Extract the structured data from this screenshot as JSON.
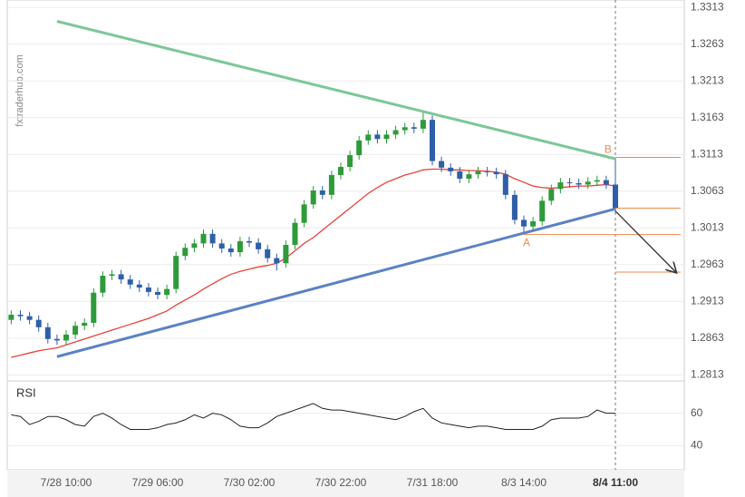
{
  "chart_data": {
    "type": "candlestick",
    "watermark": "fxtraderhub.com",
    "indicator_label": "RSI",
    "categories": [
      null,
      null,
      null,
      null,
      null,
      null,
      "7/28 10:00",
      null,
      null,
      null,
      null,
      null,
      null,
      null,
      null,
      null,
      "7/29 06:00",
      null,
      null,
      null,
      null,
      null,
      null,
      null,
      null,
      null,
      "7/30 02:00",
      null,
      null,
      null,
      null,
      null,
      null,
      null,
      null,
      null,
      "7/30 22:00",
      null,
      null,
      null,
      null,
      null,
      null,
      null,
      null,
      null,
      "7/31 18:00",
      null,
      null,
      null,
      null,
      null,
      null,
      null,
      null,
      null,
      "8/3 14:00",
      null,
      null,
      null,
      null,
      null,
      null,
      null,
      null,
      null,
      "8/4 11:00"
    ],
    "open": [
      1.2888,
      1.2895,
      1.2893,
      1.2888,
      1.2878,
      1.2862,
      1.286,
      1.2868,
      1.288,
      1.2884,
      1.2925,
      1.2948,
      1.295,
      1.2943,
      1.2936,
      1.2932,
      1.2926,
      1.2922,
      1.293,
      1.2975,
      1.2986,
      1.2992,
      1.3005,
      1.2992,
      1.2985,
      1.298,
      1.2995,
      1.2993,
      1.2984,
      1.2972,
      1.2965,
      1.299,
      1.302,
      1.3045,
      1.3064,
      1.3058,
      1.3085,
      1.3096,
      1.3112,
      1.3132,
      1.314,
      1.3134,
      1.314,
      1.3146,
      1.315,
      1.3148,
      1.316,
      1.3104,
      1.3095,
      1.309,
      1.308,
      1.3086,
      1.309,
      1.3089,
      1.3086,
      1.3058,
      1.3024,
      1.3015,
      1.3022,
      1.305,
      1.3066,
      1.3075,
      1.3074,
      1.3072,
      1.3076,
      1.3078,
      1.3072
    ],
    "high": [
      1.2901,
      1.2901,
      1.2899,
      1.2894,
      1.2884,
      1.2868,
      1.2874,
      1.2886,
      1.289,
      1.2931,
      1.2954,
      1.2956,
      1.2956,
      1.2949,
      1.2942,
      1.2938,
      1.2932,
      1.2936,
      1.2981,
      1.2992,
      1.2998,
      1.3011,
      1.3011,
      1.2998,
      1.2991,
      1.3001,
      1.3001,
      1.2999,
      1.299,
      1.2978,
      1.2996,
      1.3026,
      1.3051,
      1.307,
      1.307,
      1.3091,
      1.3102,
      1.3118,
      1.3138,
      1.3146,
      1.3146,
      1.3146,
      1.3152,
      1.3156,
      1.3156,
      1.317,
      1.3166,
      1.311,
      1.3101,
      1.3096,
      1.3092,
      1.3096,
      1.3096,
      1.3095,
      1.3092,
      1.3064,
      1.303,
      1.3028,
      1.3056,
      1.3072,
      1.3081,
      1.3081,
      1.308,
      1.3082,
      1.3084,
      1.3084,
      1.3108
    ],
    "low": [
      1.2882,
      1.2887,
      1.2882,
      1.2872,
      1.2856,
      1.2854,
      1.2854,
      1.2862,
      1.2874,
      1.2878,
      1.2919,
      1.2942,
      1.2937,
      1.293,
      1.2926,
      1.292,
      1.2916,
      1.2916,
      1.2924,
      1.2969,
      1.298,
      1.2986,
      1.2986,
      1.2979,
      1.2974,
      1.2974,
      1.2987,
      1.2978,
      1.2966,
      1.2955,
      1.2959,
      1.2984,
      1.3014,
      1.3039,
      1.3052,
      1.3052,
      1.3079,
      1.309,
      1.3106,
      1.3126,
      1.3128,
      1.3128,
      1.3134,
      1.314,
      1.3142,
      1.3142,
      1.3098,
      1.3089,
      1.3084,
      1.3074,
      1.3074,
      1.308,
      1.3083,
      1.308,
      1.3052,
      1.3018,
      1.3004,
      1.3009,
      1.3016,
      1.3044,
      1.306,
      1.3068,
      1.3066,
      1.3066,
      1.307,
      1.3066,
      1.3034
    ],
    "close": [
      1.2895,
      1.2893,
      1.2888,
      1.2878,
      1.2862,
      1.286,
      1.2868,
      1.288,
      1.2884,
      1.2925,
      1.2948,
      1.295,
      1.2943,
      1.2936,
      1.2932,
      1.2926,
      1.2922,
      1.293,
      1.2975,
      1.2986,
      1.2992,
      1.3005,
      1.2992,
      1.2985,
      1.298,
      1.2995,
      1.2993,
      1.2984,
      1.2972,
      1.2965,
      1.299,
      1.302,
      1.3045,
      1.3064,
      1.3058,
      1.3085,
      1.3096,
      1.3112,
      1.3132,
      1.314,
      1.3134,
      1.314,
      1.3146,
      1.315,
      1.3148,
      1.316,
      1.3104,
      1.3095,
      1.309,
      1.308,
      1.3086,
      1.309,
      1.3089,
      1.3086,
      1.3058,
      1.3024,
      1.3015,
      1.3022,
      1.305,
      1.3066,
      1.3075,
      1.3074,
      1.3072,
      1.3076,
      1.3078,
      1.3072,
      1.304
    ],
    "up_color": "#2e9a3a",
    "down_color": "#2f5fa8",
    "moving_average": {
      "color": "#e8413a",
      "values": [
        1.2837,
        1.284,
        1.2843,
        1.2846,
        1.2848,
        1.285,
        1.2854,
        1.2858,
        1.2862,
        1.2866,
        1.287,
        1.2874,
        1.2878,
        1.2882,
        1.2886,
        1.289,
        1.2895,
        1.29,
        1.2908,
        1.2915,
        1.2922,
        1.293,
        1.2937,
        1.2944,
        1.295,
        1.2954,
        1.2957,
        1.296,
        1.2962,
        1.2965,
        1.2972,
        1.2982,
        1.2992,
        1.3,
        1.301,
        1.302,
        1.303,
        1.304,
        1.305,
        1.306,
        1.3068,
        1.3075,
        1.308,
        1.3085,
        1.3088,
        1.3092,
        1.3093,
        1.3093,
        1.3092,
        1.3092,
        1.3091,
        1.3091,
        1.309,
        1.3089,
        1.3086,
        1.308,
        1.3075,
        1.307,
        1.3068,
        1.3067,
        1.3068,
        1.3069,
        1.307,
        1.307,
        1.3071,
        1.3072,
        1.307
      ]
    },
    "rsi": {
      "color": "#222222",
      "values": [
        59,
        58,
        53,
        55,
        58,
        58,
        56,
        53,
        52,
        58,
        60,
        57,
        53,
        50,
        50,
        50,
        51,
        53,
        54,
        56,
        59,
        57,
        60,
        59,
        56,
        52,
        51,
        51,
        54,
        58,
        60,
        62,
        64,
        66,
        63,
        62,
        62,
        61,
        60,
        59,
        58,
        57,
        56,
        58,
        61,
        63,
        57,
        54,
        53,
        52,
        51,
        52,
        52,
        51,
        50,
        50,
        50,
        50,
        52,
        56,
        57,
        57,
        57,
        58,
        62,
        60,
        60
      ],
      "ylim": [
        25,
        80
      ],
      "yticks": [
        60,
        40
      ]
    },
    "ylim": [
      1.2805,
      1.3323
    ],
    "yticks": [
      1.3313,
      1.3263,
      1.3213,
      1.3163,
      1.3113,
      1.3063,
      1.3013,
      1.2963,
      1.2913,
      1.2863,
      1.2813
    ],
    "grid": true,
    "trendlines": [
      {
        "color": "#7dc79a",
        "from": [
          5,
          1.3294
        ],
        "to": [
          66,
          1.3107
        ]
      },
      {
        "color": "#5b82c4",
        "from": [
          5,
          1.2838
        ],
        "to": [
          66,
          1.3039
        ]
      }
    ],
    "level_color": "#f08a4b",
    "levels": [
      {
        "start": 66,
        "value": 1.3109
      },
      {
        "start": 66,
        "value": 1.304
      },
      {
        "start": 56,
        "value": 1.3004
      },
      {
        "start": 66,
        "value": 1.2953
      }
    ],
    "points": [
      {
        "text": "B",
        "x": 65.2,
        "value": 1.3119
      },
      {
        "text": "A",
        "x": 56.3,
        "value": 1.2992
      }
    ],
    "arrow": {
      "from": [
        66,
        1.3036
      ],
      "to": [
        72.6,
        1.2953
      ]
    }
  }
}
